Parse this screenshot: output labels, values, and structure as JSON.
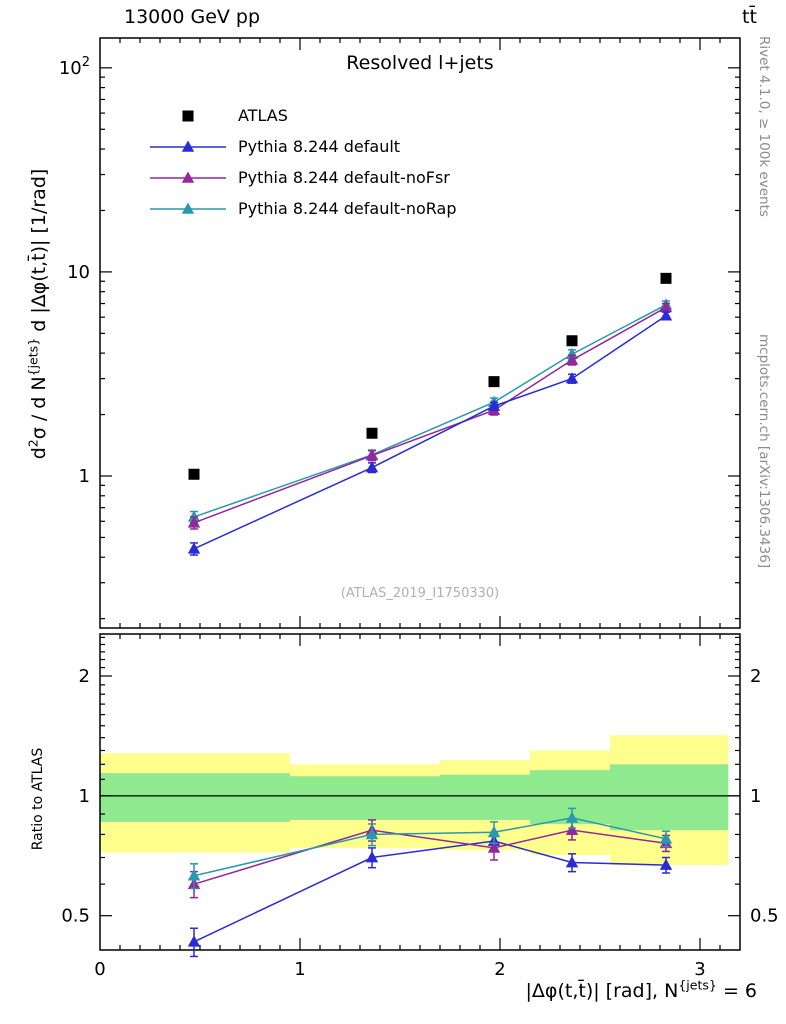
{
  "header": {
    "left": "13000 GeV pp",
    "right": "tt̄"
  },
  "right_margin": {
    "top": "Rivet 4.1.0, ≥ 100k events",
    "bottom": "mcplots.cern.ch [arXiv:1306.3436]"
  },
  "watermark": "(ATLAS_2019_I1750330)",
  "chart_data": {
    "type": "line",
    "title": "Resolved l+jets",
    "xlabel_parts": [
      {
        "t": "|Δφ(t,t̄)| [rad], N"
      },
      {
        "t": "{jets}",
        "sup": true
      },
      {
        "t": " = 6"
      }
    ],
    "ylabel_parts": [
      {
        "t": "d"
      },
      {
        "t": "2",
        "sup": true
      },
      {
        "t": "σ / d N"
      },
      {
        "t": "{jets}",
        "sup": true
      },
      {
        "t": " d |Δφ(t,t̄)| [1/rad]"
      }
    ],
    "xlim": [
      0,
      3.2
    ],
    "x": [
      0.47,
      1.36,
      1.97,
      2.36,
      2.83
    ],
    "xtick_labels": [
      {
        "v": 0,
        "t": "0"
      },
      {
        "v": 1,
        "t": "1"
      },
      {
        "v": 2,
        "t": "2"
      },
      {
        "v": 3,
        "t": "3"
      }
    ],
    "main": {
      "ylog": true,
      "ylim": [
        0.18,
        140
      ],
      "ytick_labels": [
        {
          "v": 1,
          "t": "1"
        },
        {
          "v": 10,
          "t": "10"
        },
        {
          "v": 100,
          "t": "10",
          "sup": "2"
        }
      ]
    },
    "series": [
      {
        "name": "ATLAS",
        "marker": "square",
        "color": "#000000",
        "line": false,
        "values": [
          1.02,
          1.62,
          2.9,
          4.6,
          9.3
        ],
        "errs": null
      },
      {
        "name": "Pythia 8.244 default",
        "marker": "triangle",
        "color": "#2b2bd5",
        "line": true,
        "values": [
          0.44,
          1.1,
          2.2,
          3.0,
          6.1
        ],
        "errs": [
          0.03,
          0.06,
          0.1,
          0.15,
          0.25
        ]
      },
      {
        "name": "Pythia 8.244 default-noFsr",
        "marker": "triangle",
        "color": "#93279b",
        "line": true,
        "values": [
          0.59,
          1.26,
          2.1,
          3.7,
          6.7
        ],
        "errs": [
          0.04,
          0.07,
          0.11,
          0.2,
          0.3
        ]
      },
      {
        "name": "Pythia 8.244 default-noRap",
        "marker": "triangle",
        "color": "#2899ae",
        "line": true,
        "values": [
          0.63,
          1.27,
          2.3,
          3.95,
          6.9
        ],
        "errs": [
          0.04,
          0.07,
          0.11,
          0.2,
          0.3
        ]
      }
    ],
    "ratio": {
      "label": "Ratio to ATLAS",
      "ylog": true,
      "ylim": [
        0.41,
        2.55
      ],
      "ytick_labels": [
        {
          "v": 0.5,
          "t": "0.5"
        },
        {
          "v": 1,
          "t": "1"
        },
        {
          "v": 2,
          "t": "2"
        }
      ],
      "band_edges": [
        0,
        0.95,
        1.7,
        2.15,
        2.55,
        3.1416
      ],
      "yellow_band": [
        [
          0.72,
          1.28
        ],
        [
          0.74,
          1.2
        ],
        [
          0.73,
          1.23
        ],
        [
          0.71,
          1.3
        ],
        [
          0.67,
          1.42
        ]
      ],
      "green_band": [
        [
          0.86,
          1.14
        ],
        [
          0.87,
          1.12
        ],
        [
          0.87,
          1.13
        ],
        [
          0.85,
          1.16
        ],
        [
          0.82,
          1.2
        ]
      ],
      "band_colors": {
        "yellow": "#ffff8e",
        "green": "#8fe98f"
      },
      "series": [
        {
          "name": "Pythia 8.244 default",
          "color": "#2b2bd5",
          "values": [
            0.43,
            0.7,
            0.77,
            0.68,
            0.67
          ],
          "errs": [
            0.035,
            0.04,
            0.04,
            0.035,
            0.03
          ]
        },
        {
          "name": "Pythia 8.244 default-noFsr",
          "color": "#93279b",
          "values": [
            0.6,
            0.82,
            0.74,
            0.82,
            0.76
          ],
          "errs": [
            0.045,
            0.05,
            0.05,
            0.045,
            0.035
          ]
        },
        {
          "name": "Pythia 8.244 default-noRap",
          "color": "#2899ae",
          "values": [
            0.63,
            0.8,
            0.81,
            0.88,
            0.78
          ],
          "errs": [
            0.045,
            0.05,
            0.05,
            0.05,
            0.035
          ]
        }
      ]
    }
  }
}
